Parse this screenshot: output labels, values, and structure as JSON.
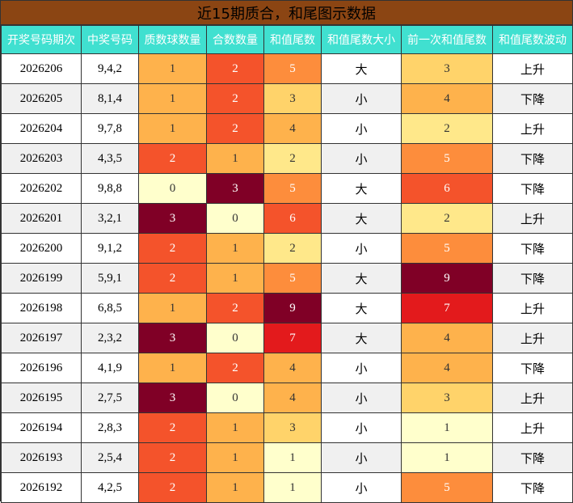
{
  "title": "近15期质合，和尾图示数据",
  "headers": [
    "开奖号码期次",
    "中奖号码",
    "质数球数量",
    "合数数量",
    "和值尾数",
    "和值尾数大小",
    "前一次和值尾数",
    "和值尾数波动"
  ],
  "rows": [
    {
      "period": "2026206",
      "numbers": "9,4,2",
      "prime": "1",
      "composite": "2",
      "tail": "5",
      "size": "大",
      "prev": "3",
      "trend": "上升",
      "prime_color": "#feb24c",
      "composite_color": "#f4532b",
      "tail_color": "#fd8d3c",
      "prev_color": "#ffd36a"
    },
    {
      "period": "2026205",
      "numbers": "8,1,4",
      "prime": "1",
      "composite": "2",
      "tail": "3",
      "size": "小",
      "prev": "4",
      "trend": "下降",
      "prime_color": "#feb24c",
      "composite_color": "#f4532b",
      "tail_color": "#ffd36a",
      "prev_color": "#feb24c"
    },
    {
      "period": "2026204",
      "numbers": "9,7,8",
      "prime": "1",
      "composite": "2",
      "tail": "4",
      "size": "小",
      "prev": "2",
      "trend": "上升",
      "prime_color": "#feb24c",
      "composite_color": "#f4532b",
      "tail_color": "#feb24c",
      "prev_color": "#ffe88a"
    },
    {
      "period": "2026203",
      "numbers": "4,3,5",
      "prime": "2",
      "composite": "1",
      "tail": "2",
      "size": "小",
      "prev": "5",
      "trend": "下降",
      "prime_color": "#f4532b",
      "composite_color": "#feb24c",
      "tail_color": "#ffe88a",
      "prev_color": "#fd8d3c"
    },
    {
      "period": "2026202",
      "numbers": "9,8,8",
      "prime": "0",
      "composite": "3",
      "tail": "5",
      "size": "大",
      "prev": "6",
      "trend": "下降",
      "prime_color": "#ffffcc",
      "composite_color": "#800026",
      "tail_color": "#fd8d3c",
      "prev_color": "#f4532b"
    },
    {
      "period": "2026201",
      "numbers": "3,2,1",
      "prime": "3",
      "composite": "0",
      "tail": "6",
      "size": "大",
      "prev": "2",
      "trend": "上升",
      "prime_color": "#800026",
      "composite_color": "#ffffcc",
      "tail_color": "#f4532b",
      "prev_color": "#ffe88a"
    },
    {
      "period": "2026200",
      "numbers": "9,1,2",
      "prime": "2",
      "composite": "1",
      "tail": "2",
      "size": "小",
      "prev": "5",
      "trend": "下降",
      "prime_color": "#f4532b",
      "composite_color": "#feb24c",
      "tail_color": "#ffe88a",
      "prev_color": "#fd8d3c"
    },
    {
      "period": "2026199",
      "numbers": "5,9,1",
      "prime": "2",
      "composite": "1",
      "tail": "5",
      "size": "大",
      "prev": "9",
      "trend": "下降",
      "prime_color": "#f4532b",
      "composite_color": "#feb24c",
      "tail_color": "#fd8d3c",
      "prev_color": "#800026"
    },
    {
      "period": "2026198",
      "numbers": "6,8,5",
      "prime": "1",
      "composite": "2",
      "tail": "9",
      "size": "大",
      "prev": "7",
      "trend": "上升",
      "prime_color": "#feb24c",
      "composite_color": "#f4532b",
      "tail_color": "#800026",
      "prev_color": "#e31a1c"
    },
    {
      "period": "2026197",
      "numbers": "2,3,2",
      "prime": "3",
      "composite": "0",
      "tail": "7",
      "size": "大",
      "prev": "4",
      "trend": "上升",
      "prime_color": "#800026",
      "composite_color": "#ffffcc",
      "tail_color": "#e31a1c",
      "prev_color": "#feb24c"
    },
    {
      "period": "2026196",
      "numbers": "4,1,9",
      "prime": "1",
      "composite": "2",
      "tail": "4",
      "size": "小",
      "prev": "4",
      "trend": "下降",
      "prime_color": "#feb24c",
      "composite_color": "#f4532b",
      "tail_color": "#feb24c",
      "prev_color": "#feb24c"
    },
    {
      "period": "2026195",
      "numbers": "2,7,5",
      "prime": "3",
      "composite": "0",
      "tail": "4",
      "size": "小",
      "prev": "3",
      "trend": "上升",
      "prime_color": "#800026",
      "composite_color": "#ffffcc",
      "tail_color": "#feb24c",
      "prev_color": "#ffd36a"
    },
    {
      "period": "2026194",
      "numbers": "2,8,3",
      "prime": "2",
      "composite": "1",
      "tail": "3",
      "size": "小",
      "prev": "1",
      "trend": "上升",
      "prime_color": "#f4532b",
      "composite_color": "#feb24c",
      "tail_color": "#ffd36a",
      "prev_color": "#ffffcc"
    },
    {
      "period": "2026193",
      "numbers": "2,5,4",
      "prime": "2",
      "composite": "1",
      "tail": "1",
      "size": "小",
      "prev": "1",
      "trend": "下降",
      "prime_color": "#f4532b",
      "composite_color": "#feb24c",
      "tail_color": "#ffffcc",
      "prev_color": "#ffffcc"
    },
    {
      "period": "2026192",
      "numbers": "4,2,5",
      "prime": "2",
      "composite": "1",
      "tail": "1",
      "size": "小",
      "prev": "5",
      "trend": "下降",
      "prime_color": "#f4532b",
      "composite_color": "#feb24c",
      "tail_color": "#ffffcc",
      "prev_color": "#fd8d3c"
    }
  ]
}
